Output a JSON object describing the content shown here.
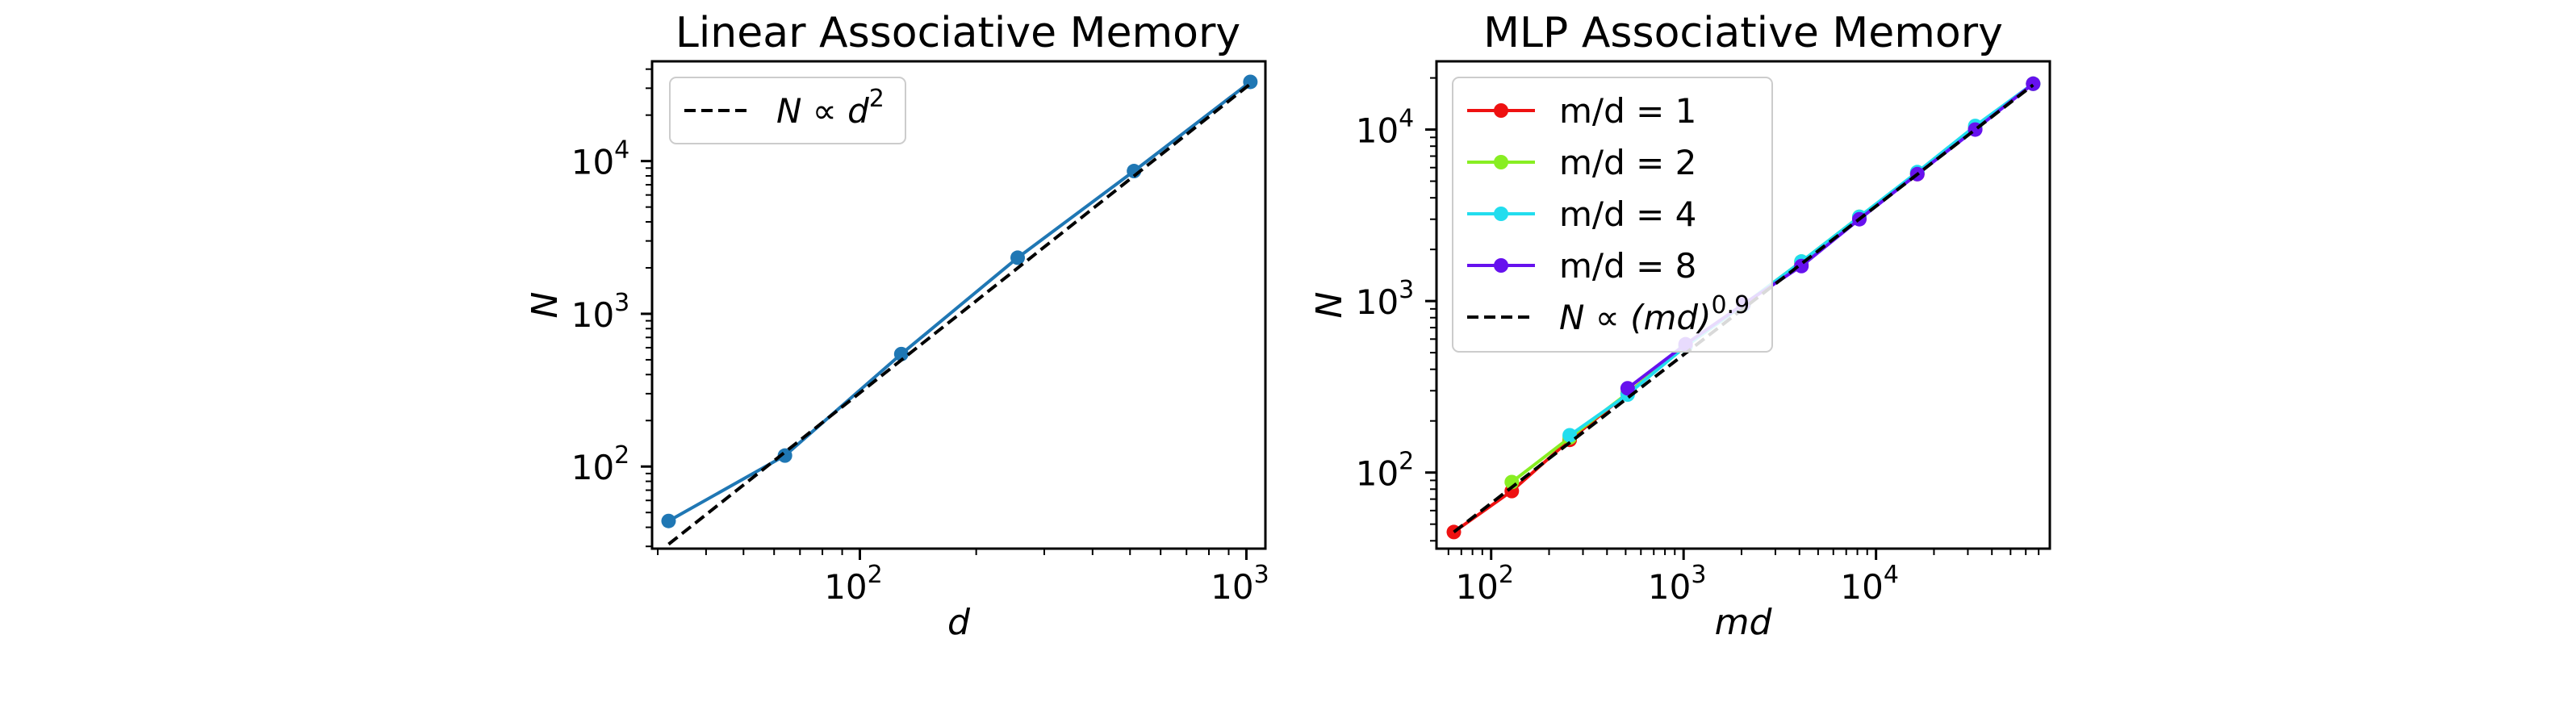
{
  "chart_data": [
    {
      "type": "line",
      "title": "Linear Associative Memory",
      "xlabel": "d",
      "ylabel": "N",
      "xscale": "log",
      "yscale": "log",
      "xlim": [
        29,
        1120
      ],
      "ylim": [
        29,
        45000
      ],
      "grid": false,
      "legend_position": "top-left",
      "x_ticks": [
        {
          "base": "10",
          "exp": "2",
          "value": 100
        },
        {
          "base": "10",
          "exp": "3",
          "value": 1000
        }
      ],
      "y_ticks": [
        {
          "base": "10",
          "exp": "2",
          "value": 100
        },
        {
          "base": "10",
          "exp": "3",
          "value": 1000
        },
        {
          "base": "10",
          "exp": "4",
          "value": 10000
        }
      ],
      "series": [
        {
          "color": "#1f77b4",
          "marker": "circle",
          "style": "solid",
          "x": [
            32,
            64,
            128,
            256,
            512,
            1024
          ],
          "y": [
            44,
            118,
            545,
            2330,
            8600,
            33000
          ]
        },
        {
          "legend": {
            "prefix": "N ∝ d",
            "sup": "2"
          },
          "color": "#000000",
          "style": "dashed",
          "x": [
            32,
            1024
          ],
          "y": [
            31,
            32000
          ]
        }
      ]
    },
    {
      "type": "line",
      "title": "MLP Associative Memory",
      "xlabel": "md",
      "ylabel": "N",
      "xscale": "log",
      "yscale": "log",
      "xlim": [
        52,
        80000
      ],
      "ylim": [
        36,
        25000
      ],
      "grid": false,
      "legend_position": "top-left",
      "x_ticks": [
        {
          "base": "10",
          "exp": "2",
          "value": 100
        },
        {
          "base": "10",
          "exp": "3",
          "value": 1000
        },
        {
          "base": "10",
          "exp": "4",
          "value": 10000
        }
      ],
      "y_ticks": [
        {
          "base": "10",
          "exp": "2",
          "value": 100
        },
        {
          "base": "10",
          "exp": "3",
          "value": 1000
        },
        {
          "base": "10",
          "exp": "4",
          "value": 10000
        }
      ],
      "series": [
        {
          "name": "m/d = 1",
          "color": "#ee1111",
          "marker": "circle",
          "style": "solid",
          "x": [
            64,
            128,
            256,
            512,
            1024,
            2048,
            4096,
            8192,
            16384,
            32768,
            65536
          ],
          "y": [
            45,
            78,
            155,
            290,
            545,
            950,
            1650,
            3050,
            5500,
            10100,
            18500
          ]
        },
        {
          "name": "m/d = 2",
          "color": "#88ee22",
          "marker": "circle",
          "style": "solid",
          "x": [
            128,
            256,
            512,
            1024,
            2048,
            4096,
            8192,
            16384,
            32768,
            65536
          ],
          "y": [
            88,
            160,
            290,
            545,
            950,
            1700,
            3100,
            5600,
            10300,
            18500
          ]
        },
        {
          "name": "m/d = 4",
          "color": "#22ddee",
          "marker": "circle",
          "style": "solid",
          "x": [
            256,
            512,
            1024,
            2048,
            4096,
            8192,
            16384,
            32768,
            65536
          ],
          "y": [
            165,
            285,
            545,
            950,
            1700,
            3100,
            5650,
            10500,
            18500
          ]
        },
        {
          "name": "m/d = 8",
          "color": "#6611ee",
          "marker": "circle",
          "style": "solid",
          "x": [
            512,
            1024,
            2048,
            4096,
            8192,
            16384,
            32768,
            65536
          ],
          "y": [
            310,
            560,
            960,
            1600,
            3000,
            5500,
            10000,
            18500
          ]
        },
        {
          "legend": {
            "prefix": "N ∝ (md)",
            "sup": "0.9"
          },
          "color": "#000000",
          "style": "dashed",
          "x": [
            64,
            65536
          ],
          "y": [
            45,
            18200
          ]
        }
      ]
    }
  ]
}
